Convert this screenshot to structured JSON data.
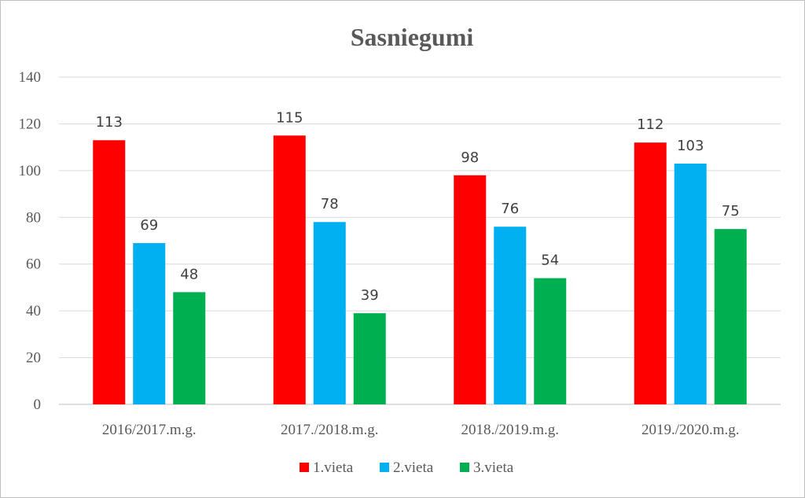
{
  "chart_data": {
    "type": "bar",
    "title": "Sasniegumi",
    "categories": [
      "2016/2017.m.g.",
      "2017./2018.m.g.",
      "2018./2019.m.g.",
      "2019./2020.m.g."
    ],
    "series": [
      {
        "name": "1.vieta",
        "color": "#ff0000",
        "values": [
          113,
          115,
          98,
          112
        ]
      },
      {
        "name": "2.vieta",
        "color": "#00b0f0",
        "values": [
          69,
          78,
          76,
          103
        ]
      },
      {
        "name": "3.vieta",
        "color": "#00b050",
        "values": [
          48,
          39,
          54,
          75
        ]
      }
    ],
    "ylim": [
      0,
      140
    ],
    "yticks": [
      0,
      20,
      40,
      60,
      80,
      100,
      120,
      140
    ],
    "grid": true,
    "legend": "bottom",
    "data_labels": true
  }
}
